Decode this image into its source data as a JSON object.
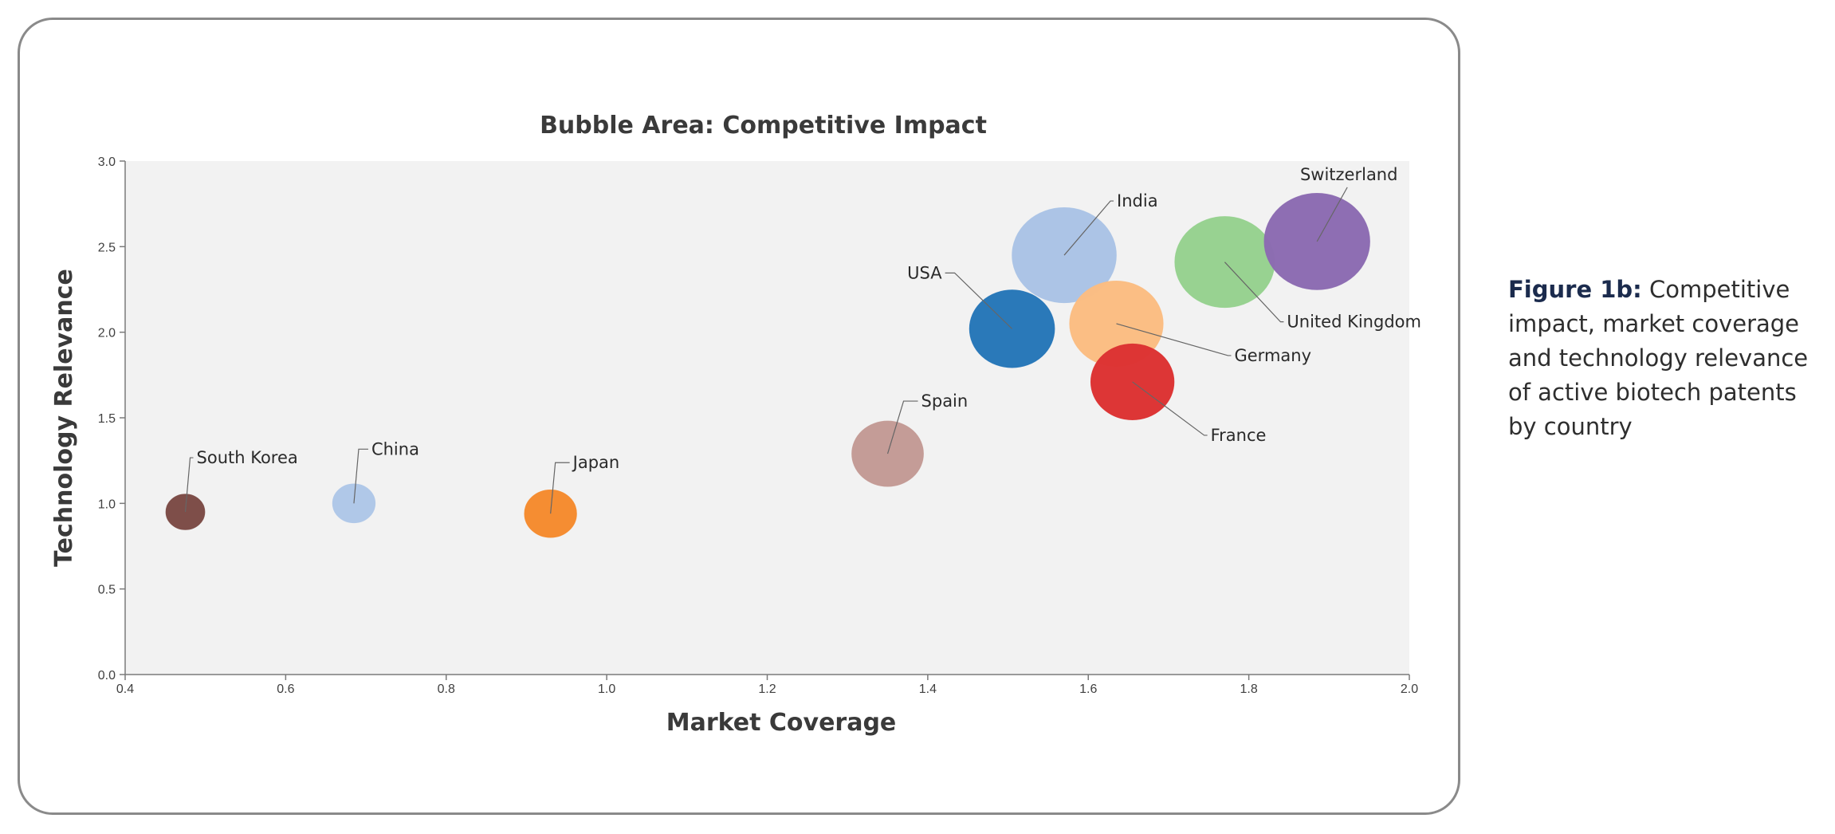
{
  "chart_data": {
    "type": "scatter",
    "subtype": "bubble",
    "title": "Bubble Area: Competitive Impact",
    "xlabel": "Market Coverage",
    "ylabel": "Technology Relevance",
    "xlim": [
      0.4,
      2.0
    ],
    "ylim": [
      0.0,
      3.0
    ],
    "x_ticks": [
      "0.4",
      "0.6",
      "0.8",
      "1.0",
      "1.2",
      "1.4",
      "1.6",
      "1.8",
      "2.0"
    ],
    "y_ticks": [
      "0.0",
      "0.5",
      "1.0",
      "1.5",
      "2.0",
      "2.5",
      "3.0"
    ],
    "series": [
      {
        "name": "South Korea",
        "x": 0.475,
        "y": 0.95,
        "size": 0.25,
        "color": "#7b4a45"
      },
      {
        "name": "China",
        "x": 0.685,
        "y": 1.0,
        "size": 0.3,
        "color": "#aec7e8"
      },
      {
        "name": "Japan",
        "x": 0.93,
        "y": 0.94,
        "size": 0.45,
        "color": "#f58b2e"
      },
      {
        "name": "Spain",
        "x": 1.35,
        "y": 1.29,
        "size": 0.85,
        "color": "#c39a95"
      },
      {
        "name": "USA",
        "x": 1.505,
        "y": 2.02,
        "size": 1.2,
        "color": "#2676b8"
      },
      {
        "name": "India",
        "x": 1.57,
        "y": 2.45,
        "size": 1.8,
        "color": "#aac3e6"
      },
      {
        "name": "Germany",
        "x": 1.635,
        "y": 2.05,
        "size": 1.45,
        "color": "#fbbd82"
      },
      {
        "name": "France",
        "x": 1.655,
        "y": 1.71,
        "size": 1.15,
        "color": "#dc3232"
      },
      {
        "name": "United Kingdom",
        "x": 1.77,
        "y": 2.41,
        "size": 1.65,
        "color": "#96d18f"
      },
      {
        "name": "Switzerland",
        "x": 1.885,
        "y": 2.53,
        "size": 1.85,
        "color": "#8c6bb1"
      }
    ]
  },
  "caption": {
    "label": "Figure 1b:",
    "text": " Competitive impact, market coverage and technology relevance of active biotech patents by country"
  }
}
